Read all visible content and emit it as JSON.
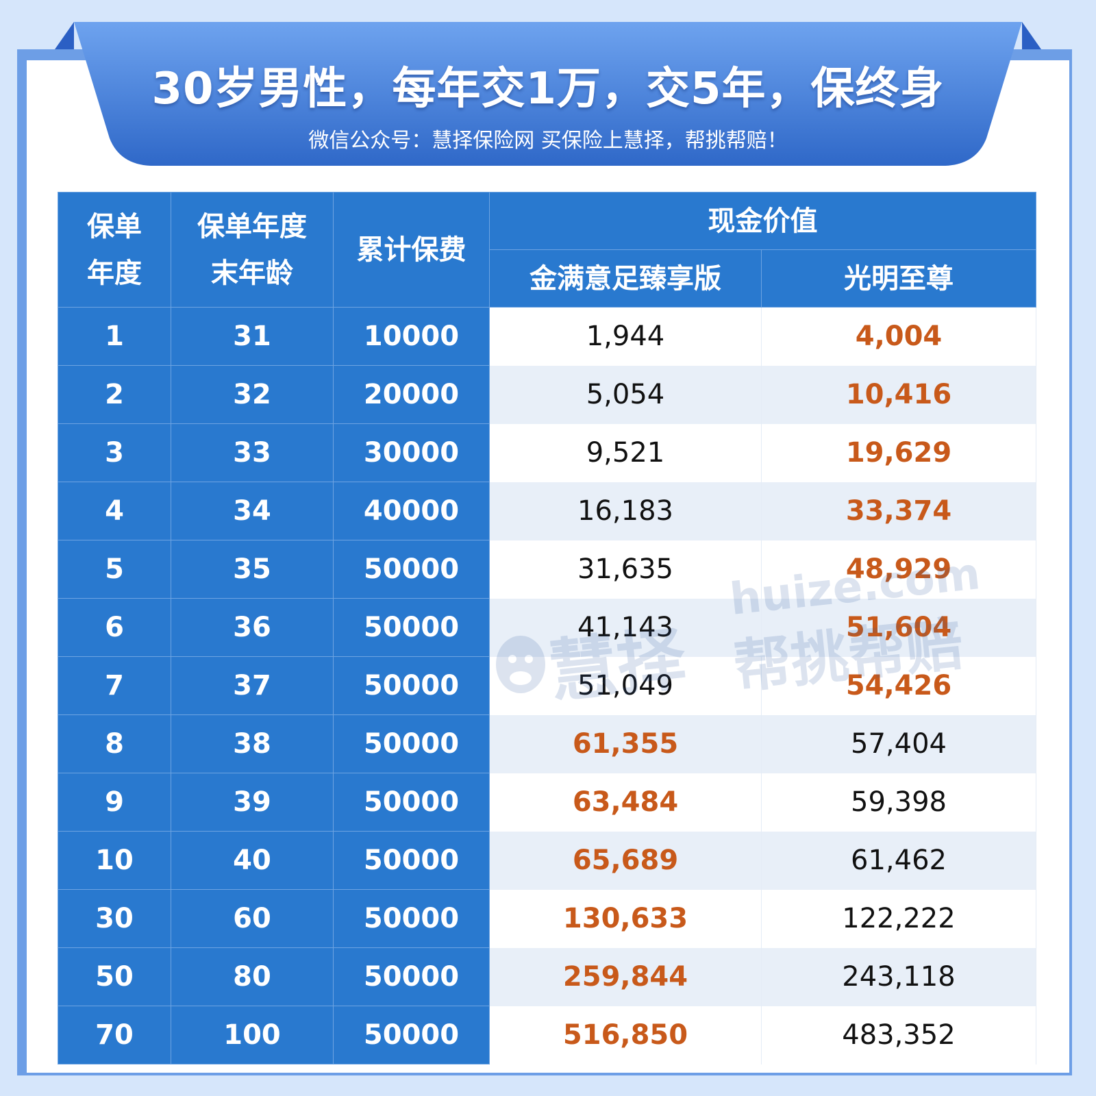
{
  "header": {
    "title": "30岁男性，每年交1万，交5年，保终身",
    "subtitle": "微信公众号：慧择保险网 买保险上慧择，帮挑帮赔！"
  },
  "table": {
    "headers": {
      "policy_year": "保单年度",
      "policy_year_line1": "保单",
      "policy_year_line2": "年度",
      "end_age_line1": "保单年度",
      "end_age_line2": "末年龄",
      "cumulative_premium": "累计保费",
      "cash_value": "现金价值",
      "product_a": "金满意足臻享版",
      "product_b": "光明至尊"
    },
    "rows": [
      {
        "year": "1",
        "age": "31",
        "premium": "10000",
        "a": "1,944",
        "b": "4,004",
        "highlight": "b"
      },
      {
        "year": "2",
        "age": "32",
        "premium": "20000",
        "a": "5,054",
        "b": "10,416",
        "highlight": "b"
      },
      {
        "year": "3",
        "age": "33",
        "premium": "30000",
        "a": "9,521",
        "b": "19,629",
        "highlight": "b"
      },
      {
        "year": "4",
        "age": "34",
        "premium": "40000",
        "a": "16,183",
        "b": "33,374",
        "highlight": "b"
      },
      {
        "year": "5",
        "age": "35",
        "premium": "50000",
        "a": "31,635",
        "b": "48,929",
        "highlight": "b"
      },
      {
        "year": "6",
        "age": "36",
        "premium": "50000",
        "a": "41,143",
        "b": "51,604",
        "highlight": "b"
      },
      {
        "year": "7",
        "age": "37",
        "premium": "50000",
        "a": "51,049",
        "b": "54,426",
        "highlight": "b"
      },
      {
        "year": "8",
        "age": "38",
        "premium": "50000",
        "a": "61,355",
        "b": "57,404",
        "highlight": "a"
      },
      {
        "year": "9",
        "age": "39",
        "premium": "50000",
        "a": "63,484",
        "b": "59,398",
        "highlight": "a"
      },
      {
        "year": "10",
        "age": "40",
        "premium": "50000",
        "a": "65,689",
        "b": "61,462",
        "highlight": "a"
      },
      {
        "year": "30",
        "age": "60",
        "premium": "50000",
        "a": "130,633",
        "b": "122,222",
        "highlight": "a"
      },
      {
        "year": "50",
        "age": "80",
        "premium": "50000",
        "a": "259,844",
        "b": "243,118",
        "highlight": "a"
      },
      {
        "year": "70",
        "age": "100",
        "premium": "50000",
        "a": "516,850",
        "b": "483,352",
        "highlight": "a"
      }
    ]
  },
  "watermark": {
    "brand_cn": "慧择",
    "brand_en": "huize.com",
    "slogan": "帮挑帮赔"
  },
  "colors": {
    "header_blue": "#2979cf",
    "highlight_orange": "#c8591a",
    "page_bg": "#d6e6fb",
    "frame_blue": "#6d9ee6"
  }
}
